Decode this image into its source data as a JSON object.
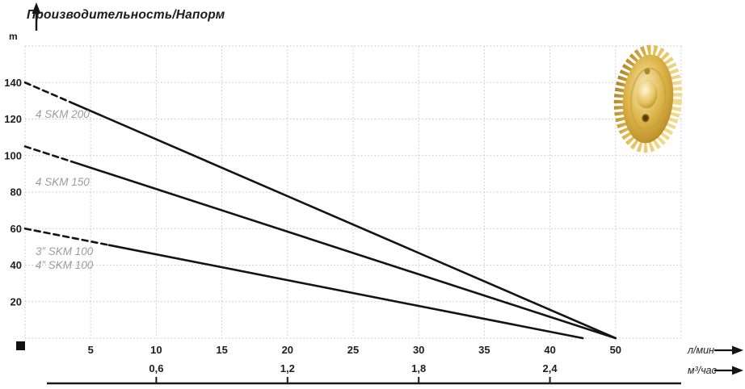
{
  "header": {
    "title": "Производительность/Напорм",
    "y_unit": "m"
  },
  "chart_data": {
    "type": "line",
    "title": "Производительность/Напорм",
    "grid": true,
    "x_axis": {
      "unit_primary": "л/мин",
      "unit_secondary": "м³/час",
      "grid_step_pos": 5,
      "grid_max_pos": 50,
      "primary_ticks": [
        {
          "pos": 5,
          "label": "5"
        },
        {
          "pos": 10,
          "label": "10"
        },
        {
          "pos": 15,
          "label": "15"
        },
        {
          "pos": 20,
          "label": "20"
        },
        {
          "pos": 25,
          "label": "25"
        },
        {
          "pos": 30,
          "label": "30"
        },
        {
          "pos": 35,
          "label": "35"
        },
        {
          "pos": 40,
          "label": "40"
        },
        {
          "pos": 45,
          "label": "50"
        }
      ],
      "secondary_ticks": [
        {
          "pos": 10,
          "label": "0,6"
        },
        {
          "pos": 20,
          "label": "1,2"
        },
        {
          "pos": 30,
          "label": "1,8"
        },
        {
          "pos": 40,
          "label": "2,4"
        }
      ]
    },
    "y_axis": {
      "unit": "m",
      "tick_values": [
        20,
        40,
        60,
        80,
        100,
        120,
        140
      ],
      "range": [
        0,
        160
      ]
    },
    "series": [
      {
        "name": "4 SKM 200",
        "labels": [
          "4 SKM 200"
        ],
        "head_m_at_zero_flow": 140,
        "flow_label_at_zero_head": "50",
        "points_pos": [
          [
            0,
            140
          ],
          [
            45,
            0
          ]
        ],
        "dash_until_pos": 3.5
      },
      {
        "name": "4 SKM 150",
        "labels": [
          "4 SKM 150"
        ],
        "head_m_at_zero_flow": 105,
        "flow_label_at_zero_head": "50",
        "points_pos": [
          [
            0,
            105
          ],
          [
            45,
            0
          ]
        ],
        "dash_until_pos": 3.6
      },
      {
        "name": "SKM 100",
        "labels": [
          "3” SKM 100",
          "4” SKM 100"
        ],
        "head_m_at_zero_flow": 60,
        "flow_label_at_zero_head": "45",
        "points_pos": [
          [
            0,
            60
          ],
          [
            42.5,
            0
          ]
        ],
        "dash_until_pos": 6.4
      }
    ],
    "colors": {
      "curve": "#141414",
      "gridline": "#c6c6c6",
      "series_label": "#9b9b9b",
      "axis_text": "#1d1d22",
      "impeller_gold": "#dfb94f"
    }
  }
}
